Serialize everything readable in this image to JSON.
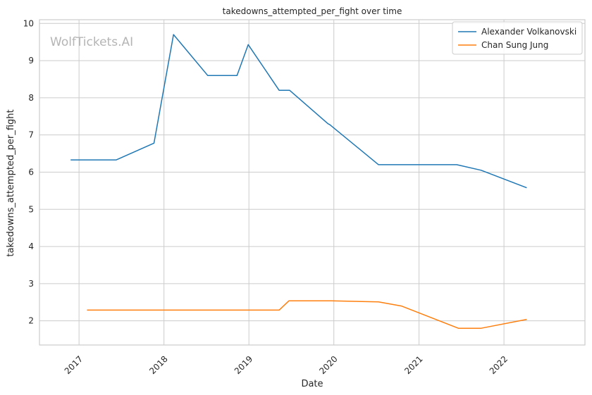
{
  "chart_data": {
    "type": "line",
    "title": "takedowns_attempted_per_fight over time",
    "xlabel": "Date",
    "ylabel": "takedowns_attempted_per_fight",
    "watermark": "WolfTickets.AI",
    "x_ticks": [
      "2017",
      "2018",
      "2019",
      "2020",
      "2021",
      "2022"
    ],
    "y_ticks": [
      "2",
      "3",
      "4",
      "5",
      "6",
      "7",
      "8",
      "9",
      "10"
    ],
    "ylim": [
      1.35,
      10.1
    ],
    "xlim": [
      "2016-07-15",
      "2022-12-15"
    ],
    "grid": true,
    "legend_position": "top-right",
    "colors": {
      "series0": "#1f77b4",
      "series1": "#ff7f0e",
      "grid": "#cccccc"
    },
    "series": [
      {
        "name": "Alexander Volkanovski",
        "points": [
          [
            "2016-11-26",
            6.33
          ],
          [
            "2017-06-10",
            6.33
          ],
          [
            "2017-11-19",
            6.78
          ],
          [
            "2018-02-11",
            9.7
          ],
          [
            "2018-07-08",
            8.6
          ],
          [
            "2018-11-11",
            8.6
          ],
          [
            "2018-12-29",
            9.43
          ],
          [
            "2019-05-11",
            8.2
          ],
          [
            "2019-06-25",
            8.2
          ],
          [
            "2019-12-07",
            7.3
          ],
          [
            "2019-12-14",
            7.28
          ],
          [
            "2020-07-11",
            6.2
          ],
          [
            "2021-06-12",
            6.2
          ],
          [
            "2021-09-25",
            6.05
          ],
          [
            "2022-04-09",
            5.58
          ]
        ]
      },
      {
        "name": "Chan Sung Jung",
        "points": [
          [
            "2017-02-04",
            2.29
          ],
          [
            "2019-05-11",
            2.29
          ],
          [
            "2019-06-22",
            2.54
          ],
          [
            "2019-12-21",
            2.54
          ],
          [
            "2020-07-11",
            2.51
          ],
          [
            "2020-10-17",
            2.4
          ],
          [
            "2021-06-19",
            1.8
          ],
          [
            "2021-09-25",
            1.8
          ],
          [
            "2022-04-09",
            2.04
          ]
        ]
      }
    ]
  }
}
